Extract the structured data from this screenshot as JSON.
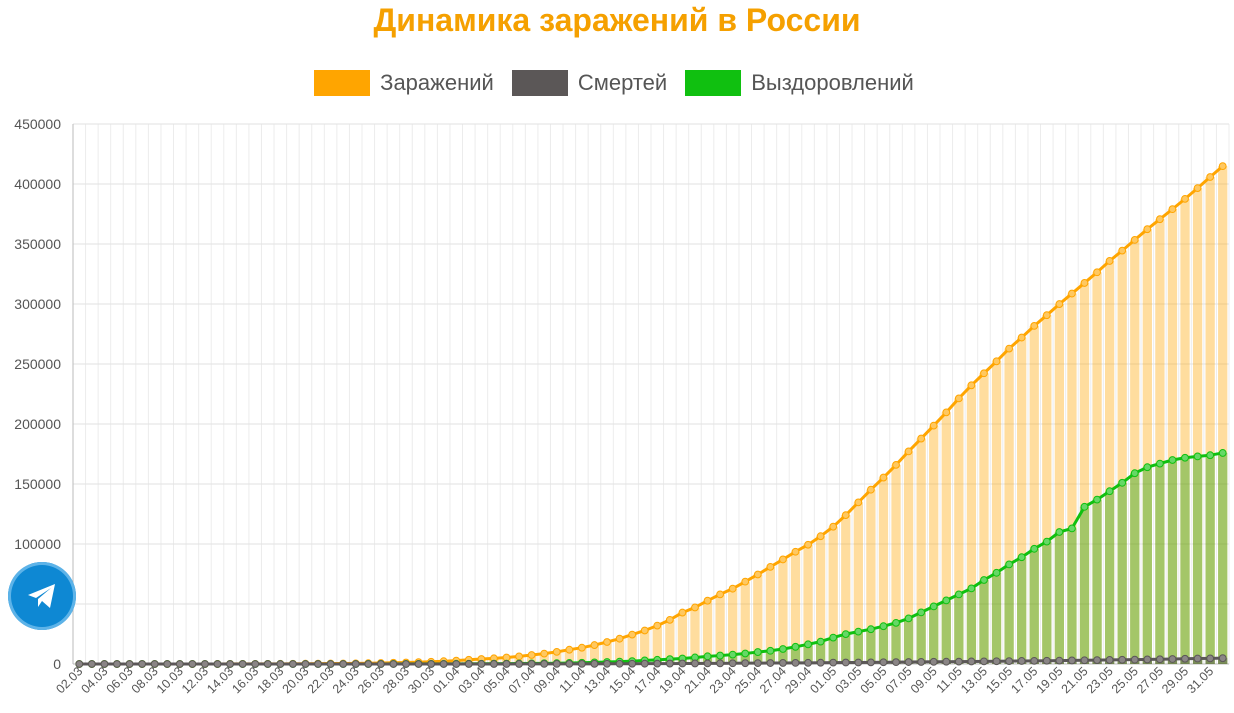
{
  "chart_data": {
    "type": "bar+line",
    "title": "Динамика заражений в России",
    "legend_position": "top",
    "grid": true,
    "ylim": [
      0,
      450000
    ],
    "y_ticks": [
      "0",
      "50000",
      "100000",
      "150000",
      "200000",
      "250000",
      "300000",
      "350000",
      "400000",
      "450000"
    ],
    "x_tick_labels": [
      "02.03",
      "04.03",
      "06.03",
      "08.03",
      "10.03",
      "12.03",
      "14.03",
      "16.03",
      "18.03",
      "20.03",
      "22.03",
      "24.03",
      "26.03",
      "28.03",
      "30.03",
      "01.04",
      "03.04",
      "05.04",
      "07.04",
      "09.04",
      "11.04",
      "13.04",
      "15.04",
      "17.04",
      "19.04",
      "21.04",
      "23.04",
      "25.04",
      "27.04",
      "29.04",
      "01.05",
      "03.05",
      "05.05",
      "07.05",
      "09.05",
      "11.05",
      "13.05",
      "15.05",
      "17.05",
      "19.05",
      "21.05",
      "23.05",
      "25.05",
      "27.05",
      "29.05",
      "31.05"
    ],
    "series": [
      {
        "name": "Заражений",
        "color": "#ffa500",
        "values": [
          3,
          3,
          3,
          3,
          3,
          7,
          10,
          14,
          17,
          20,
          28,
          45,
          59,
          63,
          90,
          114,
          147,
          199,
          253,
          306,
          367,
          438,
          495,
          658,
          840,
          1036,
          1264,
          1534,
          1836,
          2337,
          2777,
          3548,
          4149,
          4731,
          5389,
          6343,
          7497,
          8672,
          10131,
          11917,
          13584,
          15770,
          18328,
          21102,
          24490,
          27938,
          32008,
          36793,
          42853,
          47121,
          52763,
          57999,
          62773,
          68622,
          74588,
          80949,
          87147,
          93558,
          99399,
          106498,
          114431,
          124054,
          134687,
          145268,
          155370,
          165929,
          177160,
          187859,
          198676,
          209688,
          221344,
          232243,
          242271,
          252245,
          262843,
          272043,
          281752,
          290678,
          299941,
          308705,
          317554,
          326448,
          335882,
          344481,
          353427,
          362342,
          370680,
          379051,
          387623,
          396575,
          405843,
          414878
        ]
      },
      {
        "name": "Смертей",
        "color": "#5b5757",
        "values": [
          0,
          0,
          0,
          0,
          0,
          0,
          0,
          0,
          0,
          0,
          0,
          0,
          0,
          0,
          0,
          0,
          0,
          1,
          1,
          1,
          1,
          2,
          2,
          3,
          4,
          4,
          8,
          9,
          17,
          24,
          30,
          34,
          43,
          45,
          47,
          58,
          63,
          76,
          94,
          106,
          130,
          148,
          170,
          198,
          232,
          273,
          313,
          361,
          405,
          456,
          513,
          555,
          615,
          681,
          747,
          794,
          867,
          907,
          972,
          1073,
          1169,
          1222,
          1280,
          1356,
          1451,
          1537,
          1625,
          1723,
          1827,
          1915,
          2009,
          2116,
          2212,
          2305,
          2418,
          2537,
          2631,
          2722,
          2837,
          2972,
          3099,
          3249,
          3388,
          3541,
          3633,
          3807,
          3968,
          4142,
          4374,
          4555,
          4693,
          4849
        ]
      },
      {
        "name": "Выздоровлений",
        "color": "#10c010",
        "values": [
          0,
          0,
          0,
          0,
          0,
          0,
          0,
          0,
          0,
          0,
          0,
          0,
          0,
          1,
          2,
          5,
          8,
          9,
          12,
          12,
          16,
          22,
          29,
          38,
          45,
          64,
          67,
          76,
          100,
          118,
          145,
          184,
          232,
          278,
          340,
          394,
          475,
          568,
          663,
          866,
          1066,
          1337,
          1691,
          1998,
          2404,
          3001,
          3480,
          4016,
          4590,
          5452,
          6397,
          7032,
          7839,
          8751,
          9946,
          11022,
          12512,
          14328,
          16396,
          18657,
          22000,
          24920,
          27000,
          29000,
          31500,
          34300,
          38000,
          43000,
          48000,
          53000,
          58000,
          63000,
          70000,
          76000,
          83000,
          89000,
          96000,
          102000,
          110000,
          113000,
          131000,
          137000,
          144000,
          151000,
          159000,
          164000,
          167000,
          170000,
          171883,
          173000,
          174000,
          175877
        ]
      }
    ]
  }
}
